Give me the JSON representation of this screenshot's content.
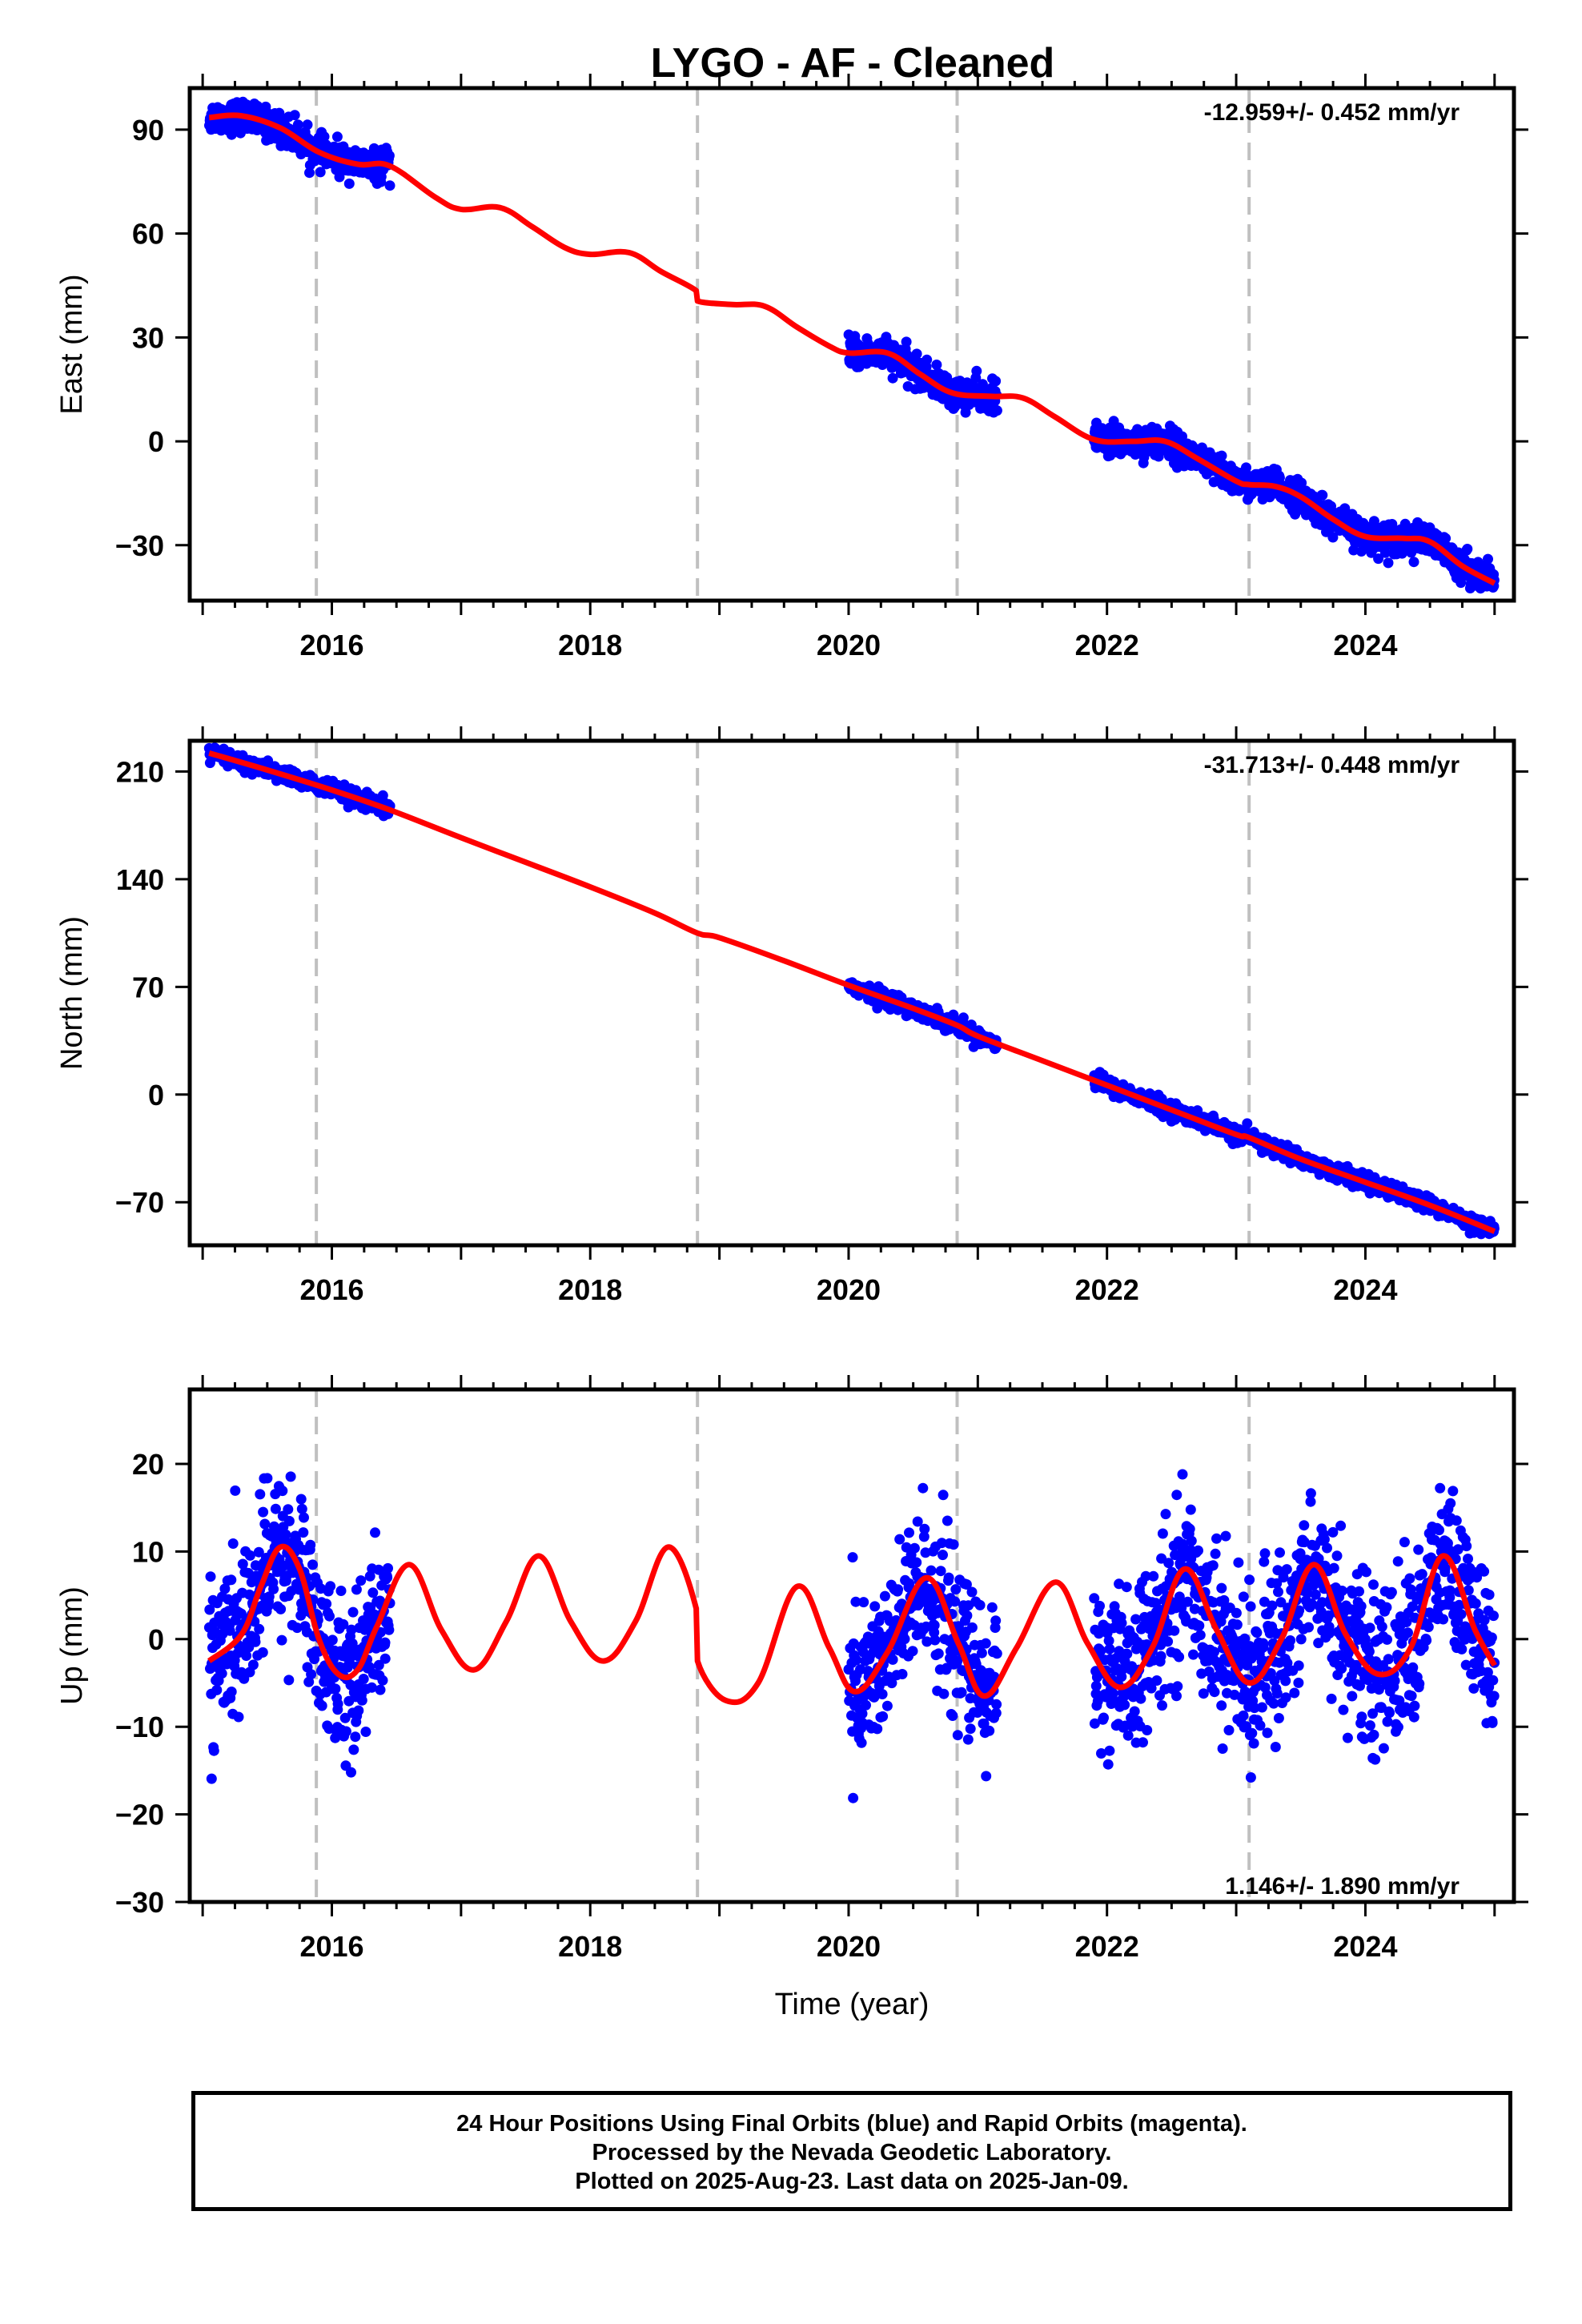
{
  "title": "LYGO  - AF - Cleaned",
  "footer": {
    "lines": [
      "24 Hour Positions Using Final Orbits (blue) and Rapid Orbits (magenta).",
      "Processed by the Nevada Geodetic Laboratory.",
      "Plotted on 2025-Aug-23. Last data on 2025-Jan-09."
    ]
  },
  "colors": {
    "points": "#0000ff",
    "model": "#ff0000",
    "breaks": "#c0c0c0",
    "frame": "#000000"
  },
  "chart_data": [
    {
      "type": "scatter",
      "name": "east",
      "ylabel": "East (mm)",
      "xlabel": "",
      "rate_label": "-12.959+/- 0.452 mm/yr",
      "xlim": [
        2014.9,
        2025.15
      ],
      "ylim": [
        -46,
        102
      ],
      "xticks": [
        2016,
        2018,
        2020,
        2022,
        2024
      ],
      "yticks": [
        90,
        60,
        30,
        0,
        -30
      ],
      "ytick_labels": [
        "90",
        "60",
        "30",
        "0",
        "−30"
      ],
      "breaks": [
        2015.88,
        2018.83,
        2020.84,
        2023.1
      ],
      "model_curve": {
        "x": [
          2015.05,
          2015.3,
          2015.6,
          2015.9,
          2016.2,
          2016.45,
          2016.8,
          2017.0,
          2017.3,
          2017.55,
          2017.8,
          2018.0,
          2018.3,
          2018.55,
          2018.82,
          2018.83,
          2019.1,
          2019.35,
          2019.6,
          2019.85,
          2020.0,
          2020.3,
          2020.55,
          2020.8,
          2021.1,
          2021.35,
          2021.6,
          2021.9,
          2022.2,
          2022.45,
          2022.7,
          2023.0,
          2023.1,
          2023.3,
          2023.5,
          2023.75,
          2024.0,
          2024.3,
          2024.5,
          2024.75,
          2025.0
        ],
        "y": [
          93.5,
          94.0,
          90.5,
          83.5,
          80.0,
          79.5,
          70.5,
          67.0,
          67.5,
          62.0,
          56.0,
          54.0,
          54.5,
          49.0,
          43.5,
          40.5,
          39.5,
          39.0,
          33.0,
          27.5,
          25.5,
          25.5,
          19.5,
          14.0,
          13.0,
          12.5,
          7.0,
          0.5,
          0.0,
          0.0,
          -5.0,
          -11.5,
          -12.5,
          -13.0,
          -16.0,
          -22.5,
          -27.5,
          -28.0,
          -29.0,
          -36.0,
          -41.0
        ]
      },
      "point_segments": [
        [
          2015.05,
          2016.45
        ],
        [
          2020.0,
          2021.15
        ],
        [
          2021.9,
          2025.0
        ]
      ],
      "point_noise": 2.2
    },
    {
      "type": "scatter",
      "name": "north",
      "ylabel": "North (mm)",
      "xlabel": "",
      "rate_label": "-31.713+/- 0.448 mm/yr",
      "xlim": [
        2014.9,
        2025.15
      ],
      "ylim": [
        -98,
        230
      ],
      "xticks": [
        2016,
        2018,
        2020,
        2022,
        2024
      ],
      "yticks": [
        210,
        140,
        70,
        0,
        -70
      ],
      "ytick_labels": [
        "210",
        "140",
        "70",
        "0",
        "−70"
      ],
      "breaks": [
        2015.88,
        2018.83,
        2020.84,
        2023.1
      ],
      "model_curve": {
        "x": [
          2015.05,
          2015.5,
          2016.0,
          2016.45,
          2017.0,
          2017.5,
          2018.0,
          2018.5,
          2018.83,
          2019.0,
          2019.5,
          2020.0,
          2020.5,
          2020.84,
          2021.0,
          2021.5,
          2022.0,
          2022.5,
          2023.0,
          2023.1,
          2023.5,
          2024.0,
          2024.5,
          2025.0
        ],
        "y": [
          222,
          211,
          198,
          185,
          167,
          151,
          135,
          118,
          105,
          102,
          87,
          71,
          56,
          45,
          38,
          22,
          6,
          -10,
          -26,
          -28,
          -42,
          -57,
          -72,
          -89
        ]
      },
      "point_segments": [
        [
          2015.05,
          2016.45
        ],
        [
          2020.0,
          2021.15
        ],
        [
          2021.9,
          2025.0
        ]
      ],
      "point_noise": 2.5
    },
    {
      "type": "scatter",
      "name": "up",
      "ylabel": "Up (mm)",
      "xlabel": "Time (year)",
      "rate_label": "1.146+/- 1.890 mm/yr",
      "xlim": [
        2014.9,
        2025.15
      ],
      "ylim": [
        -30,
        28.5
      ],
      "xticks": [
        2016,
        2018,
        2020,
        2022,
        2024
      ],
      "yticks": [
        20,
        10,
        0,
        -10,
        -20,
        -30
      ],
      "ytick_labels": [
        "20",
        "10",
        "0",
        "−10",
        "−20",
        "−30"
      ],
      "breaks": [
        2015.88,
        2018.83,
        2020.84,
        2023.1
      ],
      "model_curve": {
        "x": [
          2015.05,
          2015.3,
          2015.45,
          2015.6,
          2015.75,
          2015.9,
          2016.05,
          2016.2,
          2016.35,
          2016.6,
          2016.85,
          2017.1,
          2017.35,
          2017.6,
          2017.85,
          2018.1,
          2018.35,
          2018.6,
          2018.82,
          2018.83,
          2019.05,
          2019.3,
          2019.6,
          2019.85,
          2020.05,
          2020.3,
          2020.6,
          2020.85,
          2021.05,
          2021.3,
          2021.6,
          2021.85,
          2022.1,
          2022.35,
          2022.6,
          2022.85,
          2023.1,
          2023.35,
          2023.6,
          2023.85,
          2024.1,
          2024.35,
          2024.6,
          2024.85,
          2025.0
        ],
        "y": [
          -2.5,
          0.5,
          6.0,
          10.5,
          8.0,
          0.0,
          -4.0,
          -3.5,
          1.5,
          8.5,
          1.0,
          -3.5,
          2.0,
          9.5,
          2.0,
          -2.5,
          2.0,
          10.5,
          3.5,
          -2.5,
          -7.0,
          -5.0,
          6.0,
          -1.0,
          -6.0,
          -1.5,
          7.0,
          -0.5,
          -6.5,
          -1.0,
          6.5,
          -0.5,
          -5.5,
          -1.0,
          8.0,
          1.0,
          -5.0,
          0.0,
          8.5,
          0.5,
          -4.0,
          -1.0,
          9.5,
          1.0,
          -3.0
        ]
      },
      "point_segments": [
        [
          2015.05,
          2016.45
        ],
        [
          2020.0,
          2021.15
        ],
        [
          2021.9,
          2025.0
        ]
      ],
      "point_noise": 4.5
    }
  ]
}
